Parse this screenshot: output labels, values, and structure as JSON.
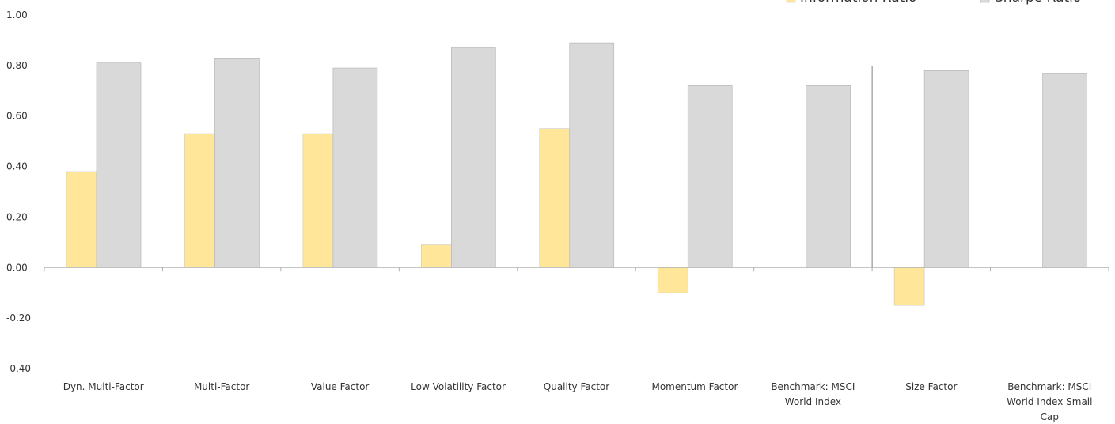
{
  "chart_data": {
    "type": "bar",
    "title": "",
    "xlabel": "",
    "ylabel": "",
    "ylim": [
      -0.4,
      1.0
    ],
    "yticks": [
      "1.00",
      "0.80",
      "0.60",
      "0.40",
      "0.20",
      "0.00",
      "-0.20",
      "-0.40"
    ],
    "ytick_values": [
      1.0,
      0.8,
      0.6,
      0.4,
      0.2,
      0.0,
      -0.2,
      -0.4
    ],
    "grid": false,
    "legend_position": "top-right",
    "categories": [
      [
        "Dyn. Multi-Factor"
      ],
      [
        "Multi-Factor"
      ],
      [
        "Value Factor"
      ],
      [
        "Low Volatility Factor"
      ],
      [
        "Quality Factor"
      ],
      [
        "Momentum Factor"
      ],
      [
        "Benchmark: MSCI",
        "World Index"
      ],
      [
        "Size Factor"
      ],
      [
        "Benchmark: MSCI",
        "World Index Small",
        "Cap"
      ]
    ],
    "series": [
      {
        "name": "Information Ratio",
        "color": "#FFE699",
        "values": [
          0.38,
          0.53,
          0.53,
          0.09,
          0.55,
          -0.1,
          0.0,
          -0.15,
          0.0
        ]
      },
      {
        "name": "Sharpe Ratio",
        "color": "#D9D9D9",
        "values": [
          0.81,
          0.83,
          0.79,
          0.87,
          0.89,
          0.72,
          0.72,
          0.78,
          0.77
        ]
      }
    ],
    "separator_after_category": 6
  }
}
